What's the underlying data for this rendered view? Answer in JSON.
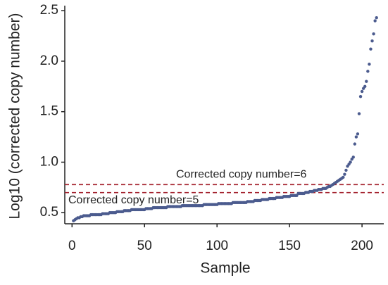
{
  "chart_data": {
    "type": "scatter",
    "x_label": "Sample",
    "y_label": "Log10 (corrected copy number)",
    "color": "#4b5b8e",
    "ref_color": "#a3202c",
    "x": [
      1,
      2,
      3,
      4,
      5,
      6,
      7,
      8,
      9,
      10,
      11,
      12,
      13,
      14,
      15,
      16,
      17,
      18,
      19,
      20,
      21,
      22,
      23,
      24,
      25,
      26,
      27,
      28,
      29,
      30,
      31,
      32,
      33,
      34,
      35,
      36,
      37,
      38,
      39,
      40,
      41,
      42,
      43,
      44,
      45,
      46,
      47,
      48,
      49,
      50,
      51,
      52,
      53,
      54,
      55,
      56,
      57,
      58,
      59,
      60,
      61,
      62,
      63,
      64,
      65,
      66,
      67,
      68,
      69,
      70,
      71,
      72,
      73,
      74,
      75,
      76,
      77,
      78,
      79,
      80,
      81,
      82,
      83,
      84,
      85,
      86,
      87,
      88,
      89,
      90,
      91,
      92,
      93,
      94,
      95,
      96,
      97,
      98,
      99,
      100,
      101,
      102,
      103,
      104,
      105,
      106,
      107,
      108,
      109,
      110,
      111,
      112,
      113,
      114,
      115,
      116,
      117,
      118,
      119,
      120,
      121,
      122,
      123,
      124,
      125,
      126,
      127,
      128,
      129,
      130,
      131,
      132,
      133,
      134,
      135,
      136,
      137,
      138,
      139,
      140,
      141,
      142,
      143,
      144,
      145,
      146,
      147,
      148,
      149,
      150,
      151,
      152,
      153,
      154,
      155,
      156,
      157,
      158,
      159,
      160,
      161,
      162,
      163,
      164,
      165,
      166,
      167,
      168,
      169,
      170,
      171,
      172,
      173,
      174,
      175,
      176,
      177,
      178,
      179,
      180,
      181,
      182,
      183,
      184,
      185,
      186,
      187,
      188,
      189,
      190,
      191,
      192,
      193,
      194,
      195,
      196,
      197,
      198,
      199,
      200,
      201,
      202,
      203,
      204,
      205,
      206,
      207,
      208,
      209,
      210
    ],
    "values": [
      0.42,
      0.43,
      0.44,
      0.45,
      0.45,
      0.46,
      0.46,
      0.47,
      0.47,
      0.47,
      0.47,
      0.47,
      0.48,
      0.48,
      0.48,
      0.48,
      0.48,
      0.48,
      0.48,
      0.48,
      0.49,
      0.49,
      0.49,
      0.49,
      0.49,
      0.5,
      0.5,
      0.5,
      0.5,
      0.5,
      0.51,
      0.51,
      0.51,
      0.51,
      0.51,
      0.52,
      0.52,
      0.52,
      0.52,
      0.52,
      0.53,
      0.53,
      0.53,
      0.53,
      0.53,
      0.53,
      0.53,
      0.53,
      0.53,
      0.53,
      0.54,
      0.54,
      0.54,
      0.54,
      0.54,
      0.55,
      0.55,
      0.55,
      0.55,
      0.55,
      0.55,
      0.55,
      0.55,
      0.55,
      0.55,
      0.56,
      0.56,
      0.56,
      0.56,
      0.56,
      0.56,
      0.56,
      0.56,
      0.56,
      0.56,
      0.57,
      0.57,
      0.57,
      0.57,
      0.57,
      0.57,
      0.57,
      0.57,
      0.57,
      0.57,
      0.57,
      0.57,
      0.57,
      0.57,
      0.57,
      0.58,
      0.58,
      0.58,
      0.58,
      0.58,
      0.58,
      0.58,
      0.58,
      0.58,
      0.58,
      0.59,
      0.59,
      0.59,
      0.59,
      0.59,
      0.59,
      0.59,
      0.59,
      0.59,
      0.59,
      0.6,
      0.6,
      0.6,
      0.6,
      0.6,
      0.6,
      0.6,
      0.6,
      0.6,
      0.6,
      0.61,
      0.61,
      0.61,
      0.61,
      0.61,
      0.62,
      0.62,
      0.62,
      0.62,
      0.62,
      0.63,
      0.63,
      0.63,
      0.63,
      0.63,
      0.64,
      0.64,
      0.64,
      0.64,
      0.64,
      0.65,
      0.65,
      0.65,
      0.65,
      0.65,
      0.66,
      0.66,
      0.66,
      0.66,
      0.66,
      0.67,
      0.67,
      0.67,
      0.67,
      0.67,
      0.69,
      0.69,
      0.69,
      0.69,
      0.69,
      0.7,
      0.7,
      0.7,
      0.71,
      0.71,
      0.71,
      0.72,
      0.72,
      0.72,
      0.73,
      0.73,
      0.73,
      0.74,
      0.74,
      0.74,
      0.75,
      0.76,
      0.76,
      0.77,
      0.78,
      0.79,
      0.8,
      0.81,
      0.82,
      0.83,
      0.84,
      0.85,
      0.88,
      0.92,
      0.96,
      0.98,
      1.0,
      1.03,
      1.05,
      1.18,
      1.25,
      1.28,
      1.48,
      1.65,
      1.7,
      1.73,
      1.75,
      1.8,
      1.9,
      1.97,
      2.12,
      2.2,
      2.27,
      2.4,
      2.43
    ],
    "xlim": [
      -5,
      215
    ],
    "ylim": [
      0.39,
      2.55
    ],
    "xticks": [
      0,
      50,
      100,
      150,
      200
    ],
    "yticks": [
      0.5,
      {
        "value": 1,
        "label": "1.0"
      },
      1.5,
      {
        "value": 2,
        "label": "2.0"
      },
      2.5
    ],
    "reference_lines": [
      {
        "value": 0.778,
        "label": "Corrected copy number=6"
      },
      {
        "value": 0.699,
        "label": "Corrected copy number=5"
      }
    ]
  }
}
